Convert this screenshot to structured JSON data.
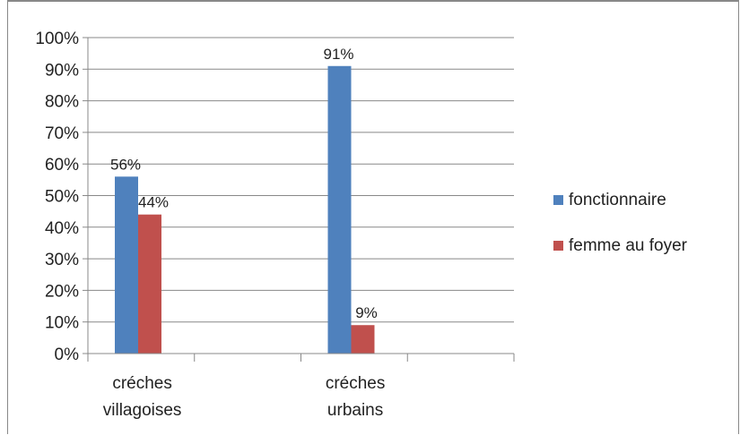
{
  "chart_data": {
    "type": "bar",
    "categories": [
      [
        "créches",
        "villagoises"
      ],
      [
        "créches",
        "urbains"
      ]
    ],
    "series": [
      {
        "name": "fonctionnaire",
        "values": [
          56,
          91
        ],
        "labels": [
          "56%",
          "91%"
        ],
        "color": "#4F81BD"
      },
      {
        "name": "femme au foyer",
        "values": [
          44,
          9
        ],
        "labels": [
          "44%",
          "9%"
        ],
        "color": "#C0504D"
      }
    ],
    "ylim": [
      0,
      100
    ],
    "yticks": [
      "0%",
      "10%",
      "20%",
      "30%",
      "40%",
      "50%",
      "60%",
      "70%",
      "80%",
      "90%",
      "100%"
    ],
    "grid": true,
    "legend": "right"
  }
}
